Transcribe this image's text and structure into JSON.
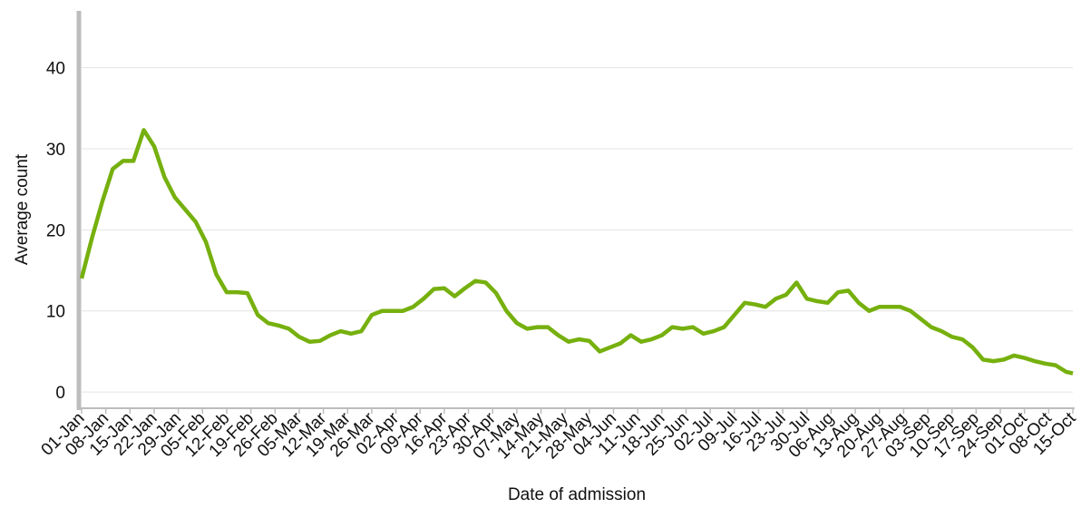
{
  "chart_data": {
    "type": "line",
    "x_label": "Date of admission",
    "y_label": "Average count",
    "xlim": [
      0,
      287
    ],
    "ylim": [
      -2,
      47
    ],
    "yticks": [
      0,
      10,
      20,
      30,
      40
    ],
    "grid": true,
    "xticks": [
      {
        "value": 0,
        "label": "01-Jan"
      },
      {
        "value": 7,
        "label": "08-Jan"
      },
      {
        "value": 14,
        "label": "15-Jan"
      },
      {
        "value": 21,
        "label": "22-Jan"
      },
      {
        "value": 28,
        "label": "29-Jan"
      },
      {
        "value": 35,
        "label": "05-Feb"
      },
      {
        "value": 42,
        "label": "12-Feb"
      },
      {
        "value": 49,
        "label": "19-Feb"
      },
      {
        "value": 56,
        "label": "26-Feb"
      },
      {
        "value": 63,
        "label": "05-Mar"
      },
      {
        "value": 70,
        "label": "12-Mar"
      },
      {
        "value": 77,
        "label": "19-Mar"
      },
      {
        "value": 84,
        "label": "26-Mar"
      },
      {
        "value": 91,
        "label": "02-Apr"
      },
      {
        "value": 98,
        "label": "09-Apr"
      },
      {
        "value": 105,
        "label": "16-Apr"
      },
      {
        "value": 112,
        "label": "23-Apr"
      },
      {
        "value": 119,
        "label": "30-Apr"
      },
      {
        "value": 126,
        "label": "07-May"
      },
      {
        "value": 133,
        "label": "14-May"
      },
      {
        "value": 140,
        "label": "21-May"
      },
      {
        "value": 147,
        "label": "28-May"
      },
      {
        "value": 154,
        "label": "04-Jun"
      },
      {
        "value": 161,
        "label": "11-Jun"
      },
      {
        "value": 168,
        "label": "18-Jun"
      },
      {
        "value": 175,
        "label": "25-Jun"
      },
      {
        "value": 182,
        "label": "02-Jul"
      },
      {
        "value": 189,
        "label": "09-Jul"
      },
      {
        "value": 196,
        "label": "16-Jul"
      },
      {
        "value": 203,
        "label": "23-Jul"
      },
      {
        "value": 210,
        "label": "30-Jul"
      },
      {
        "value": 217,
        "label": "06-Aug"
      },
      {
        "value": 224,
        "label": "13-Aug"
      },
      {
        "value": 231,
        "label": "20-Aug"
      },
      {
        "value": 238,
        "label": "27-Aug"
      },
      {
        "value": 245,
        "label": "03-Sep"
      },
      {
        "value": 252,
        "label": "10-Sep"
      },
      {
        "value": 259,
        "label": "17-Sep"
      },
      {
        "value": 266,
        "label": "24-Sep"
      },
      {
        "value": 273,
        "label": "01-Oct"
      },
      {
        "value": 280,
        "label": "08-Oct"
      },
      {
        "value": 287,
        "label": "15-Oct"
      }
    ],
    "series": [
      {
        "color": "#76b00e",
        "x": [
          0,
          3,
          6,
          9,
          12,
          15,
          18,
          21,
          24,
          27,
          30,
          33,
          36,
          39,
          42,
          45,
          48,
          51,
          54,
          57,
          60,
          63,
          66,
          69,
          72,
          75,
          78,
          81,
          84,
          87,
          90,
          93,
          96,
          99,
          102,
          105,
          108,
          111,
          114,
          117,
          120,
          123,
          126,
          129,
          132,
          135,
          138,
          141,
          144,
          147,
          150,
          153,
          156,
          159,
          162,
          165,
          168,
          171,
          174,
          177,
          180,
          183,
          186,
          189,
          192,
          195,
          198,
          201,
          204,
          207,
          210,
          213,
          216,
          219,
          222,
          225,
          228,
          231,
          234,
          237,
          240,
          243,
          246,
          249,
          252,
          255,
          258,
          261,
          264,
          267,
          270,
          273,
          276,
          279,
          282,
          285,
          287
        ],
        "values": [
          14,
          19,
          23.5,
          27.5,
          28.5,
          28.5,
          32.3,
          30.3,
          26.5,
          24,
          22.5,
          21,
          18.5,
          14.5,
          12.3,
          12.3,
          12.2,
          9.5,
          8.5,
          8.2,
          7.8,
          6.8,
          6.2,
          6.3,
          7,
          7.5,
          7.2,
          7.5,
          9.5,
          10,
          10,
          10,
          10.5,
          11.5,
          12.7,
          12.8,
          11.8,
          12.8,
          13.7,
          13.5,
          12.2,
          10,
          8.5,
          7.8,
          8,
          8,
          7,
          6.2,
          6.5,
          6.3,
          5,
          5.5,
          6,
          7,
          6.2,
          6.5,
          7,
          8,
          7.8,
          8,
          7.2,
          7.5,
          8,
          9.5,
          11,
          10.8,
          10.5,
          11.5,
          12,
          13.5,
          11.5,
          11.2,
          11,
          12.3,
          12.5,
          11,
          10,
          10.5,
          10.5,
          10.5,
          10,
          9,
          8,
          7.5,
          6.8,
          6.5,
          5.5,
          4,
          3.8,
          4,
          4.5,
          4.2,
          3.8,
          3.5,
          3.3,
          2.5,
          2.3
        ]
      }
    ]
  }
}
